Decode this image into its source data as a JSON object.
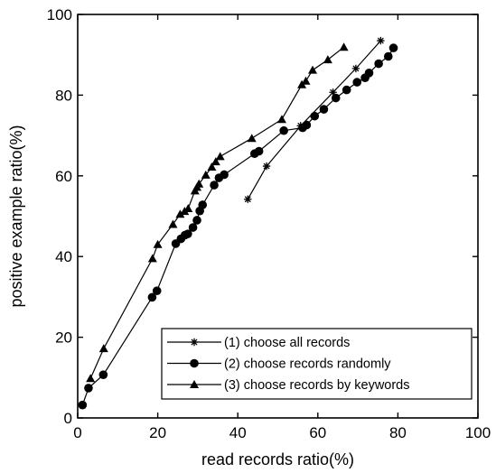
{
  "chart_data": {
    "type": "line",
    "xlabel": "read records ratio(%)",
    "ylabel": "positive example ratio(%)",
    "xlim": [
      0,
      100
    ],
    "ylim": [
      0,
      100
    ],
    "xticks": [
      0,
      20,
      40,
      60,
      80,
      100
    ],
    "yticks": [
      0,
      20,
      40,
      60,
      80,
      100
    ],
    "grid": false,
    "legend_position": "bottom-right",
    "series": [
      {
        "name": "(1) choose all records",
        "marker": "star",
        "x": [
          42.5,
          47.2,
          55.7,
          63.8,
          69.5,
          75.7
        ],
        "y": [
          54.2,
          62.4,
          72.4,
          80.7,
          86.6,
          93.5
        ]
      },
      {
        "name": "(2) choose records randomly",
        "marker": "circle",
        "x": [
          1.2,
          2.7,
          6.4,
          18.6,
          19.8,
          24.5,
          25.8,
          26.8,
          27.5,
          28.8,
          29.8,
          30.5,
          31.2,
          34.1,
          35.3,
          36.6,
          44.2,
          45.3,
          51.5,
          56.2,
          57.2,
          59.2,
          61.5,
          64.5,
          67.2,
          69.8,
          71.8,
          72.8,
          75.2,
          77.6,
          78.9
        ],
        "y": [
          3.2,
          7.4,
          10.7,
          29.9,
          31.5,
          43.2,
          44.4,
          45.3,
          45.6,
          47.2,
          49.0,
          51.3,
          52.8,
          57.7,
          59.5,
          60.3,
          65.5,
          66.1,
          71.2,
          71.9,
          72.6,
          74.8,
          76.5,
          79.3,
          81.3,
          83.2,
          84.3,
          85.5,
          87.8,
          89.6,
          91.7
        ]
      },
      {
        "name": "(3) choose records by keywords",
        "marker": "triangle",
        "x": [
          3.2,
          6.5,
          18.7,
          20.0,
          23.8,
          25.6,
          26.7,
          27.6,
          29.3,
          29.8,
          30.3,
          32.0,
          33.5,
          34.5,
          35.6,
          43.5,
          51.0,
          56.0,
          57.0,
          58.7,
          62.5,
          66.5
        ],
        "y": [
          9.8,
          17.2,
          39.5,
          43.0,
          48.0,
          50.5,
          51.2,
          51.9,
          56.3,
          57.2,
          58.0,
          60.2,
          62.2,
          63.5,
          64.8,
          69.3,
          74.0,
          82.6,
          83.5,
          86.2,
          88.8,
          91.9
        ]
      }
    ]
  }
}
